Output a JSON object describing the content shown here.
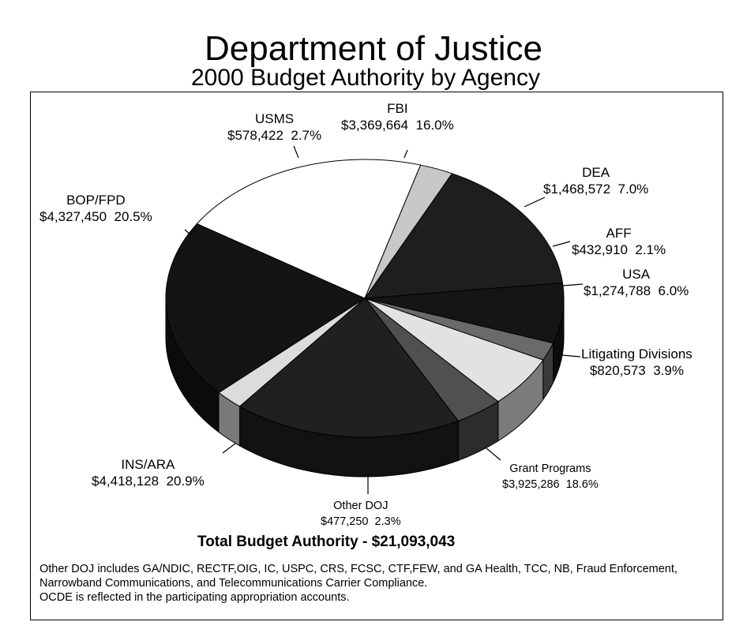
{
  "chart_data": {
    "type": "pie",
    "title": "Department of Justice",
    "subtitle": "2000 Budget Authority by Agency",
    "slices": [
      {
        "name": "FBI",
        "amount": "$3,369,664",
        "value": 16.0,
        "pct": "16.0%",
        "color": "#1e1e1e"
      },
      {
        "name": "DEA",
        "amount": "$1,468,572",
        "value": 7.0,
        "pct": "7.0%",
        "color": "#151515"
      },
      {
        "name": "AFF",
        "amount": "$432,910",
        "value": 2.1,
        "pct": "2.1%",
        "color": "#6a6a6a"
      },
      {
        "name": "USA",
        "amount": "$1,274,788",
        "value": 6.0,
        "pct": "6.0%",
        "color": "#e2e2e2"
      },
      {
        "name": "Litigating Divisions",
        "amount": "$820,573",
        "value": 3.9,
        "pct": "3.9%",
        "color": "#505050"
      },
      {
        "name": "Grant Programs",
        "amount": "$3,925,286",
        "value": 18.6,
        "pct": "18.6%",
        "color": "#202020"
      },
      {
        "name": "Other DOJ",
        "amount": "$477,250",
        "value": 2.3,
        "pct": "2.3%",
        "color": "#dcdcdc"
      },
      {
        "name": "INS/ARA",
        "amount": "$4,418,128",
        "value": 20.9,
        "pct": "20.9%",
        "color": "#141414"
      },
      {
        "name": "BOP/FPD",
        "amount": "$4,327,450",
        "value": 20.5,
        "pct": "20.5%",
        "color": "#ffffff"
      },
      {
        "name": "USMS",
        "amount": "$578,422",
        "value": 2.7,
        "pct": "2.7%",
        "color": "#c8c8c8"
      }
    ]
  },
  "total": "Total Budget Authority - $21,093,043",
  "notes": [
    "Other DOJ includes GA/NDIC, RECTF,OIG, IC, USPC, CRS, FCSC, CTF,FEW, and GA Health, TCC, NB,  Fraud Enforcement, Narrowband Communications, and Telecommunications Carrier Compliance.",
    "OCDE is reflected in the participating appropriation accounts."
  ]
}
